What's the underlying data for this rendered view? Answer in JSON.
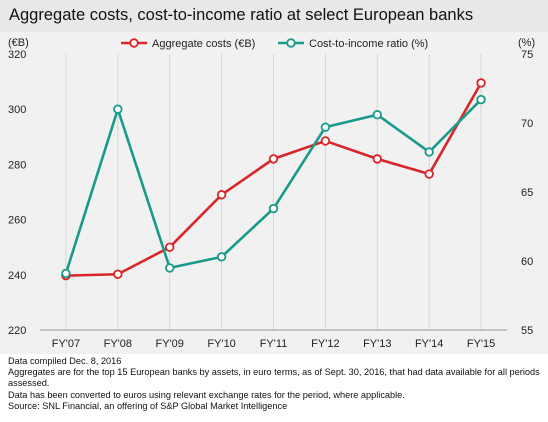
{
  "title": "Aggregate costs, cost-to-income ratio at select European banks",
  "chart_data": {
    "type": "line",
    "categories": [
      "FY'07",
      "FY'08",
      "FY'09",
      "FY'10",
      "FY'11",
      "FY'12",
      "FY'13",
      "FY'14",
      "FY'15"
    ],
    "left_axis": {
      "label": "(€B)",
      "ylim": [
        220,
        320
      ],
      "ticks": [
        "220",
        "240",
        "260",
        "280",
        "300",
        "320"
      ]
    },
    "right_axis": {
      "label": "(%)",
      "ylim": [
        55,
        75
      ],
      "ticks": [
        "55",
        "60",
        "65",
        "70",
        "75"
      ]
    },
    "grid": "vertical",
    "legend_position": "top",
    "series": [
      {
        "name": "Aggregate costs (€B)",
        "axis": "left",
        "color": "#d9262a",
        "values": [
          239.7,
          240.2,
          250.0,
          269.0,
          282.0,
          288.5,
          282.0,
          276.5,
          309.5
        ]
      },
      {
        "name": "Cost-to-income ratio (%)",
        "axis": "right",
        "color": "#1a9a8a",
        "values": [
          59.1,
          71.0,
          59.5,
          60.3,
          63.8,
          69.7,
          70.6,
          67.9,
          71.7
        ]
      }
    ]
  },
  "footer": {
    "line1": "Data compiled Dec. 8, 2016",
    "line2": "Aggregates are for the top 15 European banks by assets, in euro terms, as of Sept. 30, 2016, that had data available for all periods assessed.",
    "line3": "Data has been converted to euros using relevant exchange rates for the period, where applicable.",
    "line4": "Source: SNL Financial, an offering of S&P Global Market Intelligence"
  }
}
